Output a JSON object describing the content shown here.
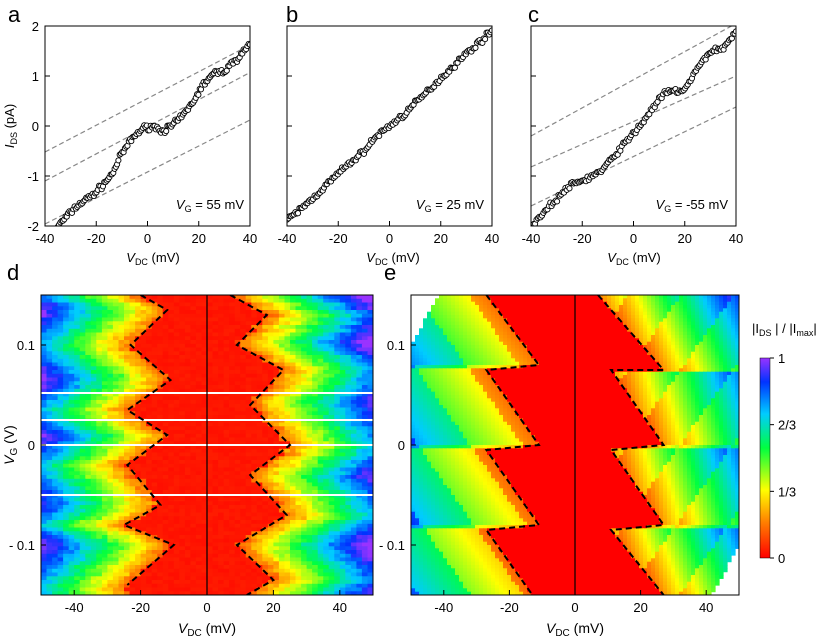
{
  "colors": {
    "red": "#ff0000",
    "orange": "#ff8000",
    "yellow": "#ffff00",
    "green": "#00ff40",
    "cyan": "#00ccff",
    "blue": "#0033ff",
    "violet": "#9933ff",
    "marker": "#000000",
    "guide": "#888888"
  },
  "chart_data": [
    {
      "id": "a",
      "type": "scatter",
      "panel_label": "a",
      "xlabel_main": "V",
      "xlabel_sub": "DC",
      "xlabel_unit": " (mV)",
      "ylabel_main": "I",
      "ylabel_sub": "DS",
      "ylabel_unit": " (pA)",
      "xlim": [
        -40,
        40
      ],
      "ylim": [
        -2,
        2
      ],
      "xticks": [
        -40,
        -20,
        0,
        20,
        40
      ],
      "xtick_labels": [
        "-40",
        "-20",
        "0",
        "20",
        "40"
      ],
      "yticks": [
        -2,
        -1,
        0,
        1,
        2
      ],
      "ytick_labels": [
        "-2",
        "-1",
        "0",
        "1",
        "2"
      ],
      "annotation_main": "V",
      "annotation_sub": "G",
      "annotation_value": " = 55 mV",
      "guides": [
        [
          [
            -40,
            -0.52
          ],
          [
            40,
            1.62
          ]
        ],
        [
          [
            -40,
            -1.1
          ],
          [
            40,
            1.07
          ]
        ],
        [
          [
            -40,
            -1.96
          ],
          [
            40,
            0.12
          ]
        ]
      ],
      "curve": [
        [
          -35,
          -2.0
        ],
        [
          -28,
          -1.62
        ],
        [
          -20,
          -1.32
        ],
        [
          -14,
          -0.98
        ],
        [
          -10,
          -0.55
        ],
        [
          -6,
          -0.25
        ],
        [
          -2,
          -0.05
        ],
        [
          2,
          0.0
        ],
        [
          6,
          -0.1
        ],
        [
          10,
          0.02
        ],
        [
          14,
          0.22
        ],
        [
          18,
          0.5
        ],
        [
          22,
          0.85
        ],
        [
          26,
          1.05
        ],
        [
          30,
          1.1
        ],
        [
          35,
          1.35
        ],
        [
          40,
          1.65
        ]
      ]
    },
    {
      "id": "b",
      "type": "scatter",
      "panel_label": "b",
      "xlabel_main": "V",
      "xlabel_sub": "DC",
      "xlabel_unit": " (mV)",
      "xlim": [
        -40,
        40
      ],
      "ylim": [
        -2,
        2
      ],
      "xticks": [
        -40,
        -20,
        0,
        20,
        40
      ],
      "xtick_labels": [
        "-40",
        "-20",
        "0",
        "20",
        "40"
      ],
      "yticks": [
        -2,
        -1,
        0,
        1,
        2
      ],
      "annotation_main": "V",
      "annotation_sub": "G",
      "annotation_value": " = 25 mV",
      "guides": [],
      "curve": [
        [
          -40,
          -1.9
        ],
        [
          -30,
          -1.45
        ],
        [
          -20,
          -0.95
        ],
        [
          -10,
          -0.5
        ],
        [
          -5,
          -0.2
        ],
        [
          0,
          0.0
        ],
        [
          5,
          0.2
        ],
        [
          10,
          0.45
        ],
        [
          20,
          0.95
        ],
        [
          30,
          1.45
        ],
        [
          40,
          1.9
        ]
      ]
    },
    {
      "id": "c",
      "type": "scatter",
      "panel_label": "c",
      "xlabel_main": "V",
      "xlabel_sub": "DC",
      "xlabel_unit": " (mV)",
      "xlim": [
        -40,
        40
      ],
      "ylim": [
        -2,
        2
      ],
      "xticks": [
        -40,
        -20,
        0,
        20,
        40
      ],
      "xtick_labels": [
        "-40",
        "-20",
        "0",
        "20",
        "40"
      ],
      "yticks": [
        -2,
        -1,
        0,
        1,
        2
      ],
      "annotation_main": "V",
      "annotation_sub": "G",
      "annotation_value": " = -55 mV",
      "guides": [
        [
          [
            -40,
            -0.2
          ],
          [
            40,
            2.05
          ]
        ],
        [
          [
            -40,
            -0.82
          ],
          [
            40,
            1.0
          ]
        ],
        [
          [
            -40,
            -1.6
          ],
          [
            40,
            0.38
          ]
        ]
      ],
      "curve": [
        [
          -40,
          -2.0
        ],
        [
          -33,
          -1.62
        ],
        [
          -25,
          -1.2
        ],
        [
          -18,
          -1.05
        ],
        [
          -12,
          -0.88
        ],
        [
          -6,
          -0.5
        ],
        [
          0,
          -0.15
        ],
        [
          4,
          0.1
        ],
        [
          8,
          0.4
        ],
        [
          12,
          0.65
        ],
        [
          16,
          0.7
        ],
        [
          20,
          0.72
        ],
        [
          25,
          1.15
        ],
        [
          30,
          1.5
        ],
        [
          35,
          1.55
        ],
        [
          40,
          1.9
        ]
      ]
    },
    {
      "id": "d",
      "type": "heatmap",
      "panel_label": "d",
      "xlabel_main": "V",
      "xlabel_sub": "DC",
      "xlabel_unit": " (mV)",
      "ylabel_main": "V",
      "ylabel_sub": "G",
      "ylabel_unit": " (V)",
      "xlim": [
        -50,
        50
      ],
      "ylim": [
        -0.15,
        0.15
      ],
      "xticks": [
        -40,
        -20,
        0,
        20,
        40
      ],
      "xtick_labels": [
        "-40",
        "-20",
        "0",
        "20",
        "40"
      ],
      "yticks": [
        0.1,
        0,
        -0.1
      ],
      "ytick_labels": [
        "0.1",
        "0",
        "- 0.1"
      ],
      "white_lines": [
        0.052,
        0.025,
        0.0,
        -0.05
      ],
      "zigzag_left": [
        [
          -20,
          0.15
        ],
        [
          -12,
          0.135
        ],
        [
          -23,
          0.1
        ],
        [
          -11,
          0.065
        ],
        [
          -24,
          0.035
        ],
        [
          -12,
          0.01
        ],
        [
          -24,
          -0.02
        ],
        [
          -14,
          -0.06
        ],
        [
          -25,
          -0.08
        ],
        [
          -10,
          -0.1
        ],
        [
          -24,
          -0.14
        ]
      ],
      "zigzag_right": [
        [
          7,
          0.15
        ],
        [
          18,
          0.13
        ],
        [
          9,
          0.1
        ],
        [
          23,
          0.075
        ],
        [
          13,
          0.04
        ],
        [
          25,
          0.0
        ],
        [
          13,
          -0.03
        ],
        [
          24,
          -0.07
        ],
        [
          9,
          -0.1
        ],
        [
          20,
          -0.135
        ],
        [
          12,
          -0.15
        ]
      ]
    },
    {
      "id": "e",
      "type": "heatmap",
      "panel_label": "e",
      "xlabel_main": "V",
      "xlabel_sub": "DC",
      "xlabel_unit": " (mV)",
      "xlim": [
        -50,
        50
      ],
      "ylim": [
        -0.15,
        0.15
      ],
      "xticks": [
        -40,
        -20,
        0,
        20,
        40
      ],
      "xtick_labels": [
        "-40",
        "-20",
        "0",
        "20",
        "40"
      ],
      "yticks": [
        0.1,
        0,
        -0.1
      ],
      "ytick_labels": [
        "0.1",
        "0",
        "- 0.1"
      ],
      "zigzag_left": [
        [
          -27,
          0.15
        ],
        [
          -11,
          0.08
        ],
        [
          -27,
          0.075
        ],
        [
          -11,
          0.0
        ],
        [
          -27,
          -0.005
        ],
        [
          -11,
          -0.08
        ],
        [
          -27,
          -0.085
        ],
        [
          -13,
          -0.15
        ]
      ],
      "zigzag_right": [
        [
          7,
          0.15
        ],
        [
          27,
          0.075
        ],
        [
          11,
          0.075
        ],
        [
          27,
          0.0
        ],
        [
          11,
          -0.005
        ],
        [
          27,
          -0.08
        ],
        [
          11,
          -0.085
        ],
        [
          27,
          -0.15
        ]
      ]
    }
  ],
  "colorbar": {
    "label_a": "|I",
    "label_a_sub": "DS",
    "label_b": " | / |I",
    "label_b_sub": "max",
    "label_c": "|",
    "ticks": [
      1,
      0.6667,
      0.3333,
      0
    ],
    "tick_labels": [
      "1",
      "2/3",
      "1/3",
      "0"
    ]
  }
}
